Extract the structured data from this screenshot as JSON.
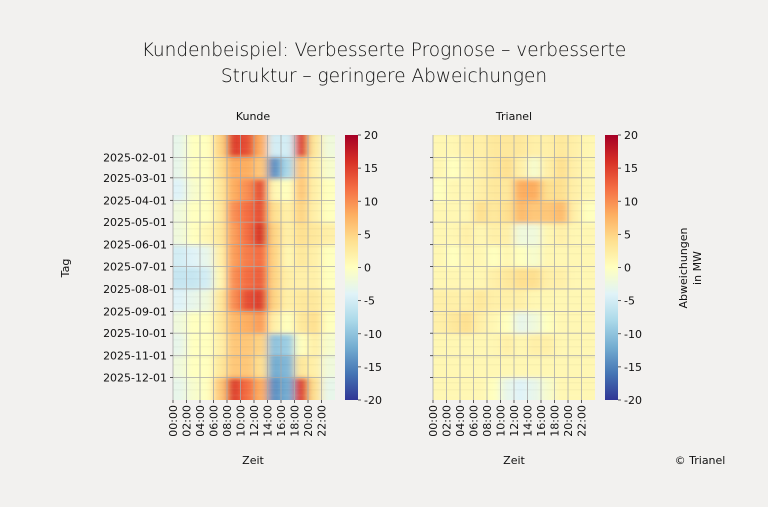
{
  "title_lines": [
    "Kundenbeispiel: Verbesserte Prognose – verbesserte",
    "Struktur – geringere Abweichungen"
  ],
  "copyright": "© Trianel",
  "chart_data": [
    {
      "type": "heatmap",
      "title": "Kunde",
      "xlabel": "Zeit",
      "ylabel": "Tag",
      "x_ticks": [
        "00:00",
        "02:00",
        "04:00",
        "06:00",
        "08:00",
        "10:00",
        "12:00",
        "14:00",
        "16:00",
        "18:00",
        "20:00",
        "22:00"
      ],
      "y_ticks": [
        "2025-02-01",
        "2025-03-01",
        "2025-04-01",
        "2025-05-01",
        "2025-06-01",
        "2025-07-01",
        "2025-08-01",
        "2025-09-01",
        "2025-10-01",
        "2025-11-01",
        "2025-12-01"
      ],
      "y_range": [
        "2025-01-01",
        "2025-12-31"
      ],
      "grid": true,
      "colormap": "RdYlBu_r",
      "clim": [
        -20,
        20
      ],
      "colorbar_ticks": [
        20,
        15,
        10,
        5,
        0,
        -5,
        -10,
        -15,
        -20
      ],
      "rows": [
        "2025-01",
        "2025-02",
        "2025-03",
        "2025-04",
        "2025-05",
        "2025-06",
        "2025-07",
        "2025-08",
        "2025-09",
        "2025-10",
        "2025-11",
        "2025-12"
      ],
      "cols": [
        "00:00",
        "02:00",
        "04:00",
        "06:00",
        "08:00",
        "10:00",
        "12:00",
        "14:00",
        "16:00",
        "18:00",
        "20:00",
        "22:00"
      ],
      "values": [
        [
          -3,
          0,
          0,
          5,
          15,
          14,
          8,
          -5,
          -5,
          15,
          3,
          -2
        ],
        [
          -3,
          0,
          0,
          4,
          8,
          8,
          6,
          -14,
          -8,
          6,
          2,
          -1
        ],
        [
          -4,
          -1,
          0,
          3,
          8,
          10,
          14,
          1,
          0,
          6,
          2,
          0
        ],
        [
          -2,
          0,
          0,
          3,
          10,
          12,
          14,
          4,
          2,
          5,
          2,
          0
        ],
        [
          -2,
          0,
          1,
          3,
          9,
          12,
          16,
          5,
          2,
          4,
          3,
          2
        ],
        [
          -5,
          -4,
          -3,
          2,
          9,
          11,
          12,
          5,
          1,
          3,
          2,
          0
        ],
        [
          -6,
          -6,
          -5,
          1,
          10,
          12,
          13,
          5,
          2,
          2,
          2,
          0
        ],
        [
          -4,
          -3,
          -2,
          3,
          10,
          14,
          15,
          5,
          2,
          3,
          3,
          1
        ],
        [
          -2,
          0,
          0,
          3,
          7,
          8,
          9,
          2,
          0,
          3,
          4,
          0
        ],
        [
          -3,
          0,
          0,
          2,
          6,
          6,
          5,
          -10,
          -9,
          0,
          2,
          -1
        ],
        [
          -2,
          0,
          0,
          3,
          6,
          6,
          4,
          -12,
          -11,
          3,
          2,
          -2
        ],
        [
          -3,
          -1,
          0,
          6,
          15,
          12,
          8,
          -14,
          -12,
          15,
          4,
          -3
        ]
      ]
    },
    {
      "type": "heatmap",
      "title": "Trianel",
      "xlabel": "Zeit",
      "colorbar_label": [
        "Abweichungen",
        "in MW"
      ],
      "x_ticks": [
        "00:00",
        "02:00",
        "04:00",
        "06:00",
        "08:00",
        "10:00",
        "12:00",
        "14:00",
        "16:00",
        "18:00",
        "20:00",
        "22:00"
      ],
      "y_range": [
        "2025-01-01",
        "2025-12-31"
      ],
      "grid": true,
      "colormap": "RdYlBu_r",
      "clim": [
        -20,
        20
      ],
      "colorbar_ticks": [
        20,
        15,
        10,
        5,
        0,
        -5,
        -10,
        -15,
        -20
      ],
      "rows": [
        "2025-01",
        "2025-02",
        "2025-03",
        "2025-04",
        "2025-05",
        "2025-06",
        "2025-07",
        "2025-08",
        "2025-09",
        "2025-10",
        "2025-11",
        "2025-12"
      ],
      "cols": [
        "00:00",
        "02:00",
        "04:00",
        "06:00",
        "08:00",
        "10:00",
        "12:00",
        "14:00",
        "16:00",
        "18:00",
        "20:00",
        "22:00"
      ],
      "values": [
        [
          1,
          1,
          2,
          2,
          3,
          3,
          3,
          2,
          2,
          3,
          2,
          1
        ],
        [
          1,
          0,
          1,
          2,
          3,
          4,
          2,
          -1,
          2,
          4,
          2,
          1
        ],
        [
          0,
          1,
          1,
          2,
          3,
          3,
          8,
          8,
          4,
          4,
          2,
          1
        ],
        [
          1,
          1,
          1,
          4,
          3,
          4,
          7,
          6,
          6,
          7,
          2,
          0
        ],
        [
          1,
          1,
          2,
          1,
          2,
          2,
          -2,
          -2,
          1,
          2,
          1,
          1
        ],
        [
          1,
          0,
          1,
          1,
          0,
          1,
          0,
          -1,
          1,
          1,
          1,
          1
        ],
        [
          1,
          1,
          1,
          1,
          2,
          3,
          4,
          4,
          2,
          2,
          1,
          1
        ],
        [
          2,
          2,
          2,
          3,
          2,
          2,
          2,
          1,
          1,
          1,
          1,
          1
        ],
        [
          2,
          3,
          4,
          2,
          1,
          0,
          -3,
          -2,
          0,
          1,
          1,
          1
        ],
        [
          1,
          1,
          1,
          1,
          1,
          2,
          1,
          2,
          2,
          1,
          1,
          1
        ],
        [
          1,
          1,
          1,
          1,
          1,
          1,
          1,
          1,
          1,
          1,
          1,
          1
        ],
        [
          1,
          1,
          1,
          1,
          0,
          -3,
          -4,
          -3,
          -1,
          1,
          1,
          1
        ]
      ]
    }
  ]
}
